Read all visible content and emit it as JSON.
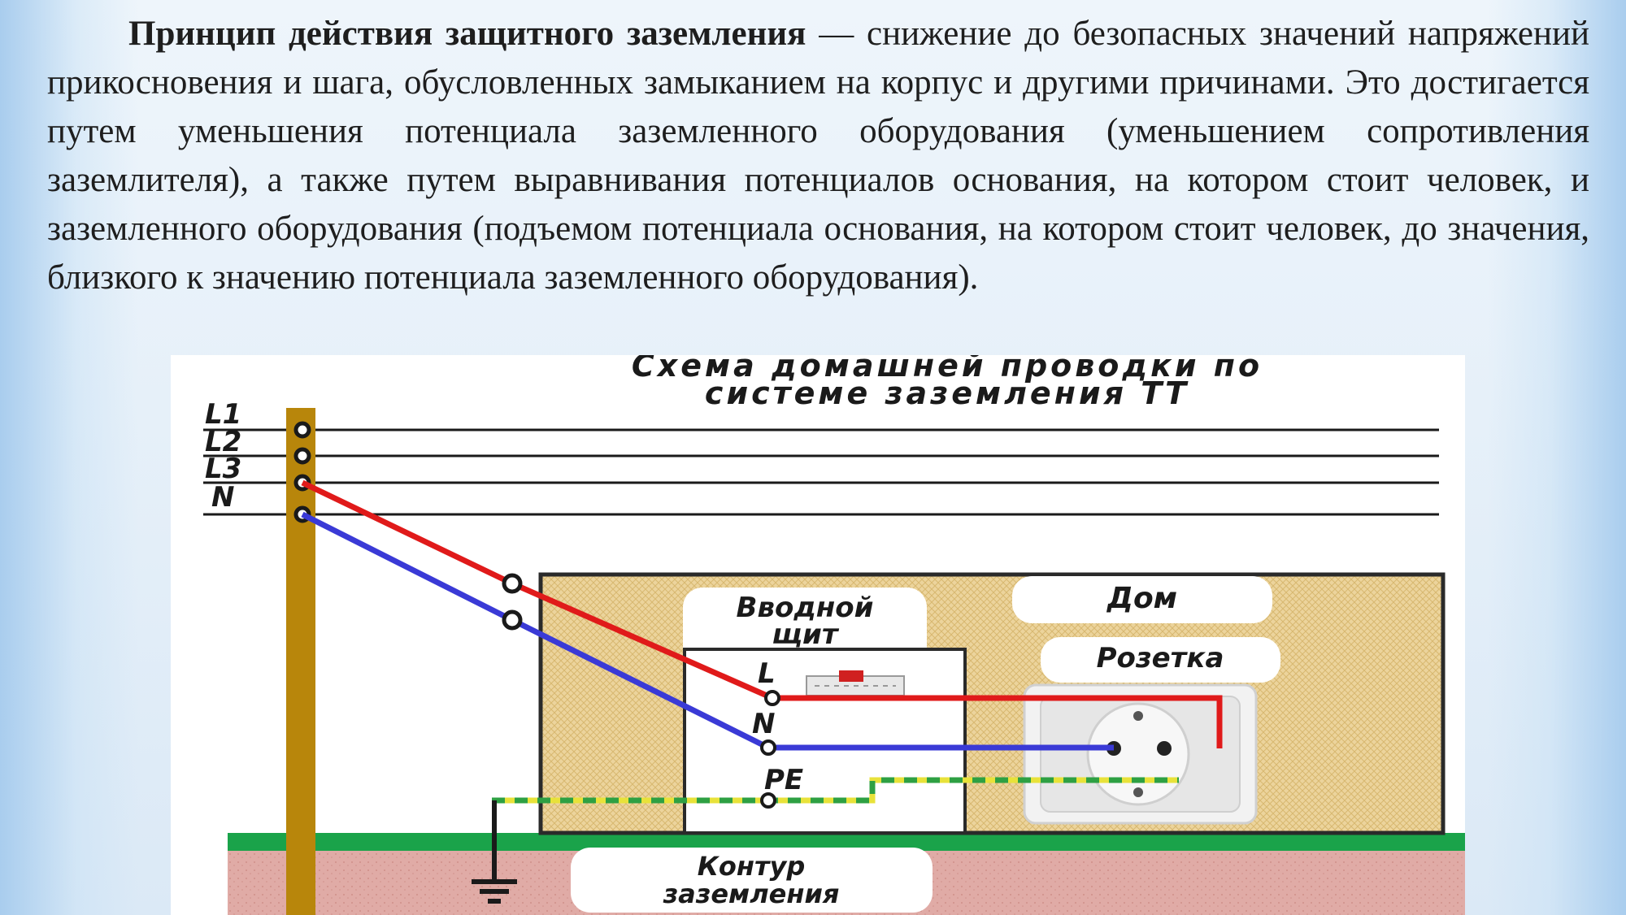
{
  "paragraph": {
    "term": "Принцип действия защитного заземления",
    "dash": " — ",
    "text": "снижение до безопасных значений напряжений прикосновения и шага, обусловленных замыканием на корпус и другими причинами. Это достигается путем уменьшения потенциала заземленного оборудования (уменьшением сопротивления заземлителя), а также путем выравнивания потенциалов основания, на котором стоит человек, и заземленного оборудования (подъемом потенциала основания, на котором стоит человек, до значения, близкого к значению потенциала заземленного оборудования)."
  },
  "diagram": {
    "title_line1": "Схема домашней проводки по",
    "title_line2": "системе заземления ТТ",
    "lines": [
      "L1",
      "L2",
      "L3",
      "N"
    ],
    "house_label": "Дом",
    "panel_label_line1": "Вводной",
    "panel_label_line2": "щит",
    "panel_terminals": [
      "L",
      "N",
      "PE"
    ],
    "socket_label": "Розетка",
    "ground_label_line1": "Контур",
    "ground_label_line2": "заземления",
    "colors": {
      "phase": "#e01a1a",
      "neutral": "#3a3ad6",
      "pe_green": "#2ea043",
      "pe_yellow": "#e8e23a",
      "pole": "#b8860b",
      "house": "#e9cf95",
      "ground_grass": "#1aa34a",
      "ground_soil": "#d9a4a0"
    }
  }
}
